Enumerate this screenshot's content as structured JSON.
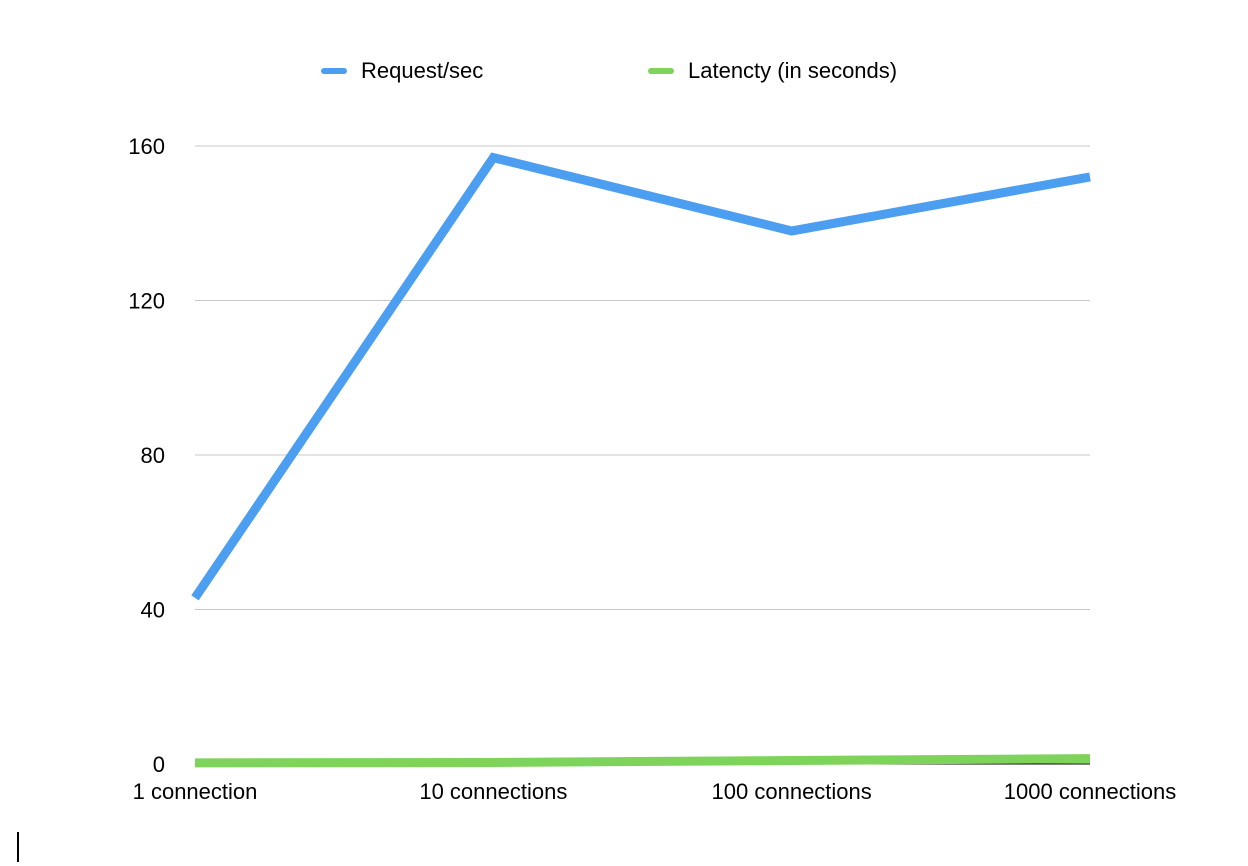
{
  "chart_data": {
    "type": "line",
    "title": "",
    "xlabel": "",
    "ylabel": "",
    "categories": [
      "1 connection",
      "10 connections",
      "100 connections",
      "1000 connections"
    ],
    "yticks": [
      0,
      40,
      80,
      120,
      160
    ],
    "ylim": [
      0,
      160
    ],
    "grid": true,
    "legend_position": "top-center",
    "series": [
      {
        "name": "Request/sec",
        "color": "#4c9ef0",
        "values": [
          43,
          157,
          138,
          152
        ]
      },
      {
        "name": "Latencty (in seconds)",
        "color": "#7ed35b",
        "values": [
          0.3,
          0.4,
          0.9,
          1.4
        ]
      }
    ]
  }
}
